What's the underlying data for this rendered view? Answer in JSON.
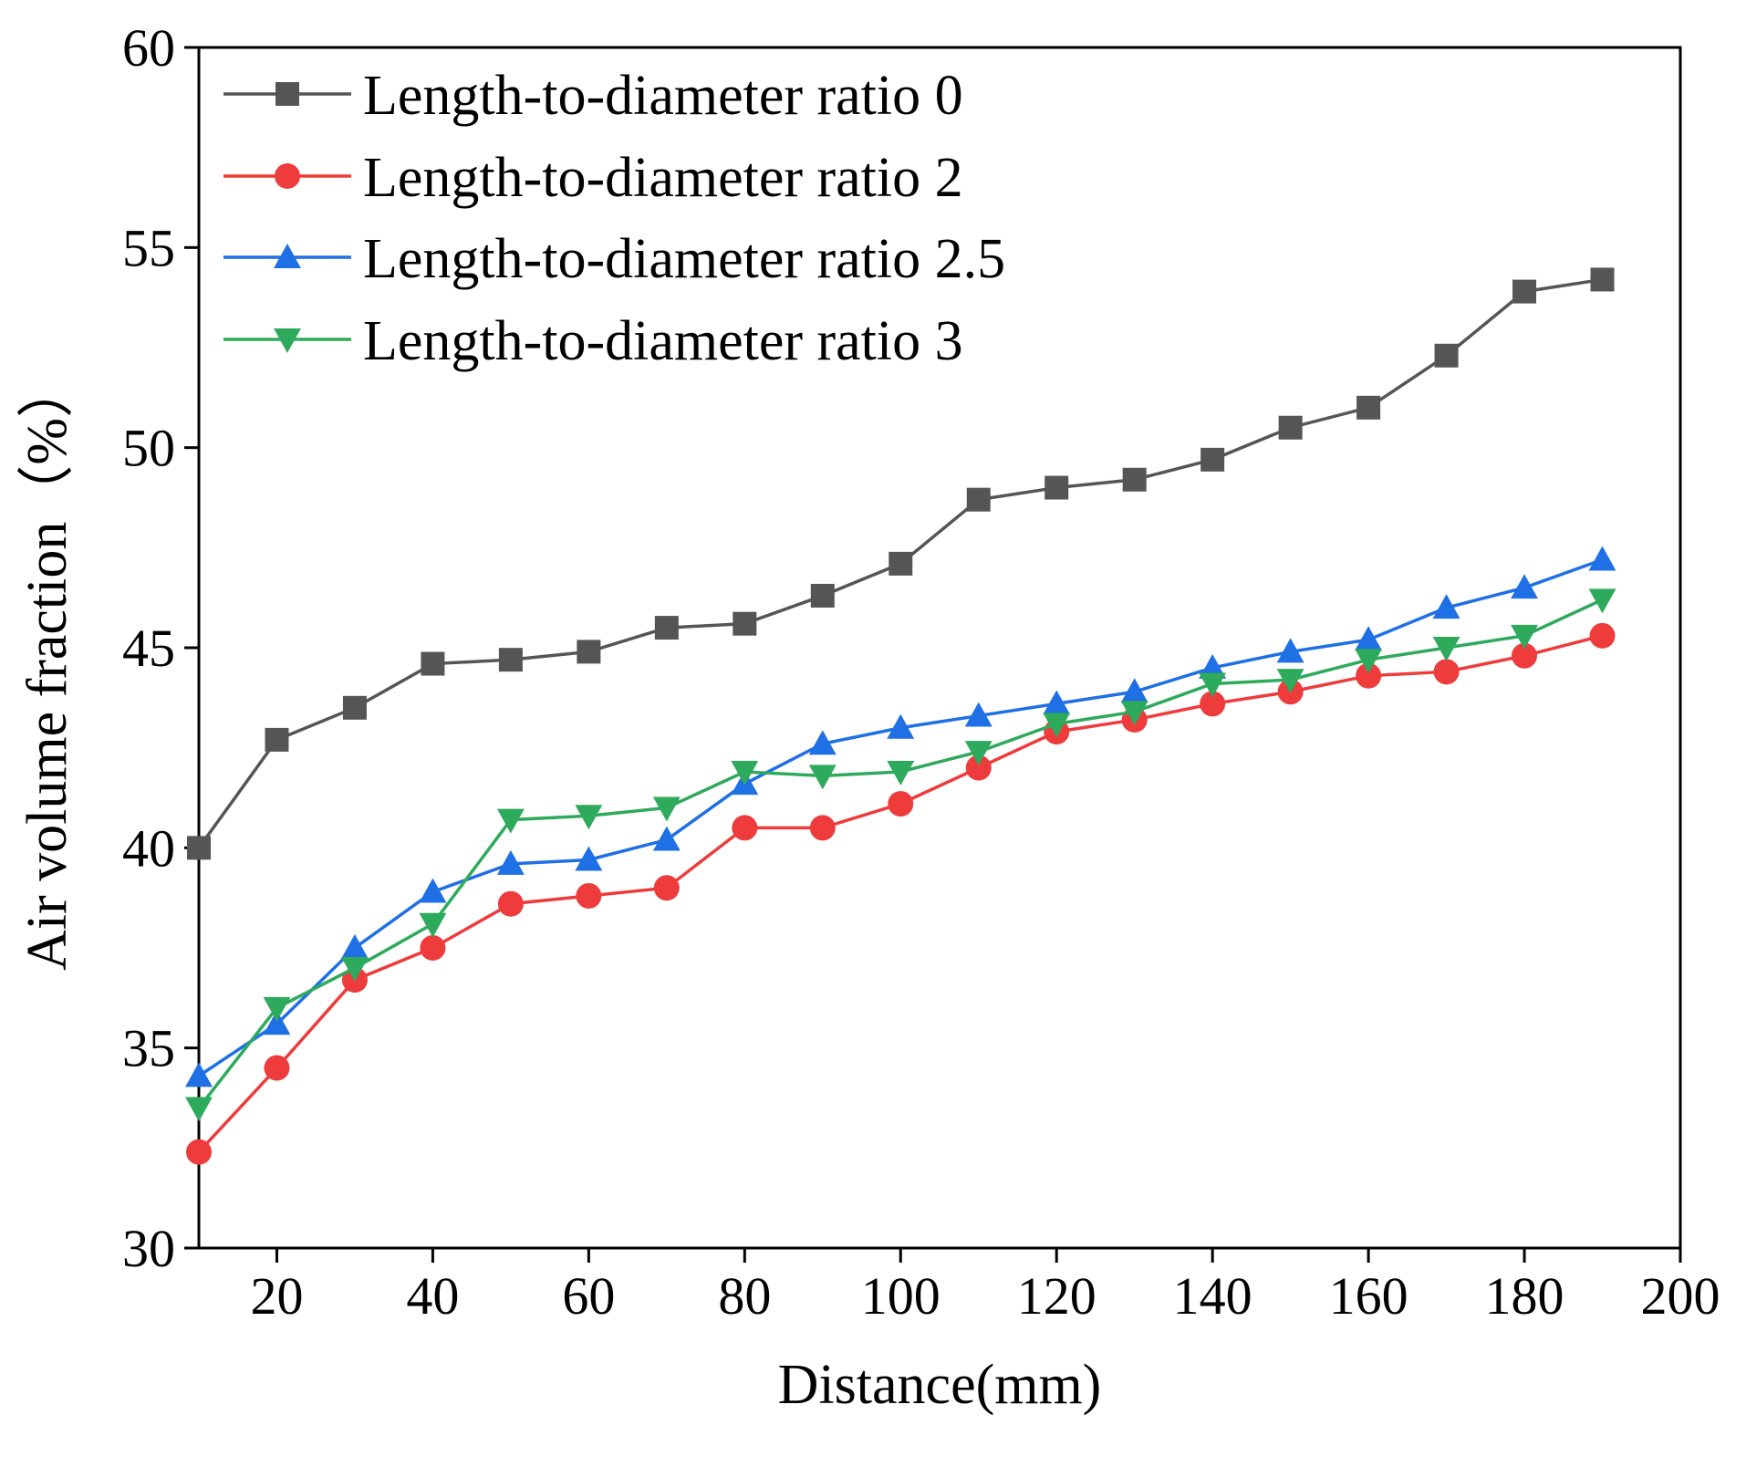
{
  "chart_data": {
    "type": "line",
    "title": "",
    "xlabel": "Distance(mm)",
    "ylabel": "Air volume fraction（%）",
    "xlim": [
      10,
      200
    ],
    "ylim": [
      30,
      60
    ],
    "xticks": [
      20,
      40,
      60,
      80,
      100,
      120,
      140,
      160,
      180,
      200
    ],
    "yticks": [
      30,
      35,
      40,
      45,
      50,
      55,
      60
    ],
    "grid": false,
    "legend_position": "top-left",
    "x": [
      10,
      20,
      30,
      40,
      50,
      60,
      70,
      80,
      90,
      100,
      110,
      120,
      130,
      140,
      150,
      160,
      170,
      180,
      190
    ],
    "series": [
      {
        "name": "Length-to-diameter ratio 0",
        "color": "#555555",
        "marker": "square",
        "values": [
          40.0,
          42.7,
          43.5,
          44.6,
          44.7,
          44.9,
          45.5,
          45.6,
          46.3,
          47.1,
          48.7,
          49.0,
          49.2,
          49.7,
          50.5,
          51.0,
          52.3,
          53.9,
          54.2
        ]
      },
      {
        "name": "Length-to-diameter ratio 2",
        "color": "#ee3b3b",
        "marker": "circle",
        "values": [
          32.4,
          34.5,
          36.7,
          37.5,
          38.6,
          38.8,
          39.0,
          40.5,
          40.5,
          41.1,
          42.0,
          42.9,
          43.2,
          43.6,
          43.9,
          44.3,
          44.4,
          44.8,
          45.3
        ]
      },
      {
        "name": "Length-to-diameter ratio 2.5",
        "color": "#1f6fe5",
        "marker": "triangle-up",
        "values": [
          34.3,
          35.6,
          37.5,
          38.9,
          39.6,
          39.7,
          40.2,
          41.6,
          42.6,
          43.0,
          43.3,
          43.6,
          43.9,
          44.5,
          44.9,
          45.2,
          46.0,
          46.5,
          47.2
        ]
      },
      {
        "name": "Length-to-diameter ratio 3",
        "color": "#2eaa5c",
        "marker": "triangle-down",
        "values": [
          33.5,
          36.0,
          37.0,
          38.1,
          40.7,
          40.8,
          41.0,
          41.9,
          41.8,
          41.9,
          42.4,
          43.1,
          43.4,
          44.1,
          44.2,
          44.7,
          45.0,
          45.3,
          46.2
        ]
      }
    ]
  }
}
